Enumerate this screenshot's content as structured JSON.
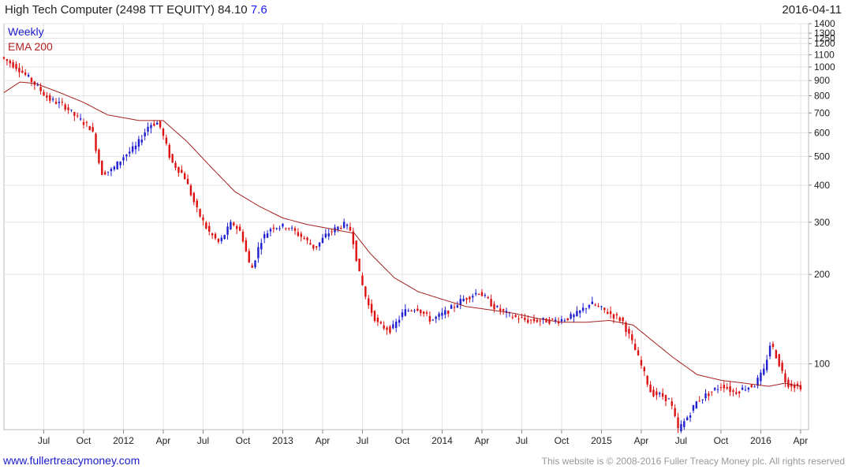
{
  "header": {
    "title": "High Tech Computer (2498 TT EQUITY) 84.10",
    "change": "7.6",
    "date": "2016-04-11"
  },
  "footer": {
    "left": "www.fullertreacymoney.com",
    "right": "This website is © 2008-2016 Fuller Treacy Money plc. All rights reserved"
  },
  "colors": {
    "up": "#1f1fd0",
    "down": "#dd1111",
    "ema": "#a52020",
    "grid": "#e4e4e4"
  },
  "chart_data": {
    "type": "candlestick",
    "scale": "log",
    "ylim": [
      60,
      1400
    ],
    "legend": [
      "Weekly",
      "EMA 200"
    ],
    "legend_position": "top-left",
    "grid": true,
    "y_ticks": [
      100,
      200,
      300,
      400,
      500,
      600,
      700,
      800,
      900,
      1000,
      1100,
      1200,
      1250,
      1300,
      1400
    ],
    "x_ticks": [
      {
        "label": "Jul",
        "t": 2011.5
      },
      {
        "label": "Oct",
        "t": 2011.75
      },
      {
        "label": "2012",
        "t": 2012.0
      },
      {
        "label": "Apr",
        "t": 2012.25
      },
      {
        "label": "Jul",
        "t": 2012.5
      },
      {
        "label": "Oct",
        "t": 2012.75
      },
      {
        "label": "2013",
        "t": 2013.0
      },
      {
        "label": "Apr",
        "t": 2013.25
      },
      {
        "label": "Jul",
        "t": 2013.5
      },
      {
        "label": "Oct",
        "t": 2013.75
      },
      {
        "label": "2014",
        "t": 2014.0
      },
      {
        "label": "Apr",
        "t": 2014.25
      },
      {
        "label": "Jul",
        "t": 2014.5
      },
      {
        "label": "Oct",
        "t": 2014.75
      },
      {
        "label": "2015",
        "t": 2015.0
      },
      {
        "label": "Apr",
        "t": 2015.25
      },
      {
        "label": "Jul",
        "t": 2015.5
      },
      {
        "label": "Oct",
        "t": 2015.75
      },
      {
        "label": "2016",
        "t": 2016.0
      },
      {
        "label": "Apr",
        "t": 2016.25
      }
    ],
    "price_path": [
      [
        2011.25,
        1080
      ],
      [
        2011.35,
        1000
      ],
      [
        2011.45,
        890
      ],
      [
        2011.55,
        780
      ],
      [
        2011.65,
        740
      ],
      [
        2011.72,
        680
      ],
      [
        2011.82,
        620
      ],
      [
        2011.88,
        440
      ],
      [
        2011.95,
        450
      ],
      [
        2012.02,
        500
      ],
      [
        2012.1,
        540
      ],
      [
        2012.18,
        640
      ],
      [
        2012.24,
        650
      ],
      [
        2012.32,
        480
      ],
      [
        2012.4,
        430
      ],
      [
        2012.48,
        330
      ],
      [
        2012.55,
        280
      ],
      [
        2012.62,
        255
      ],
      [
        2012.7,
        300
      ],
      [
        2012.76,
        275
      ],
      [
        2012.82,
        205
      ],
      [
        2012.88,
        260
      ],
      [
        2012.95,
        290
      ],
      [
        2013.05,
        290
      ],
      [
        2013.15,
        265
      ],
      [
        2013.22,
        245
      ],
      [
        2013.3,
        275
      ],
      [
        2013.4,
        295
      ],
      [
        2013.45,
        280
      ],
      [
        2013.5,
        200
      ],
      [
        2013.55,
        160
      ],
      [
        2013.62,
        135
      ],
      [
        2013.7,
        130
      ],
      [
        2013.78,
        150
      ],
      [
        2013.86,
        155
      ],
      [
        2013.95,
        140
      ],
      [
        2014.05,
        150
      ],
      [
        2014.15,
        165
      ],
      [
        2014.25,
        175
      ],
      [
        2014.35,
        155
      ],
      [
        2014.45,
        145
      ],
      [
        2014.55,
        140
      ],
      [
        2014.65,
        140
      ],
      [
        2014.75,
        140
      ],
      [
        2014.85,
        145
      ],
      [
        2014.95,
        160
      ],
      [
        2015.05,
        150
      ],
      [
        2015.15,
        140
      ],
      [
        2015.22,
        115
      ],
      [
        2015.28,
        95
      ],
      [
        2015.33,
        80
      ],
      [
        2015.4,
        78
      ],
      [
        2015.45,
        75
      ],
      [
        2015.5,
        60
      ],
      [
        2015.55,
        65
      ],
      [
        2015.62,
        75
      ],
      [
        2015.7,
        80
      ],
      [
        2015.78,
        85
      ],
      [
        2015.85,
        80
      ],
      [
        2015.92,
        83
      ],
      [
        2015.98,
        85
      ],
      [
        2016.04,
        95
      ],
      [
        2016.08,
        118
      ],
      [
        2016.12,
        105
      ],
      [
        2016.18,
        86
      ],
      [
        2016.25,
        84
      ]
    ],
    "ema_path": [
      [
        2011.25,
        820
      ],
      [
        2011.35,
        890
      ],
      [
        2011.45,
        880
      ],
      [
        2011.6,
        820
      ],
      [
        2011.75,
        760
      ],
      [
        2011.9,
        690
      ],
      [
        2012.1,
        660
      ],
      [
        2012.25,
        660
      ],
      [
        2012.4,
        560
      ],
      [
        2012.55,
        460
      ],
      [
        2012.7,
        380
      ],
      [
        2012.85,
        340
      ],
      [
        2013.0,
        310
      ],
      [
        2013.15,
        295
      ],
      [
        2013.3,
        285
      ],
      [
        2013.45,
        275
      ],
      [
        2013.55,
        235
      ],
      [
        2013.7,
        195
      ],
      [
        2013.85,
        175
      ],
      [
        2014.0,
        165
      ],
      [
        2014.15,
        156
      ],
      [
        2014.3,
        152
      ],
      [
        2014.45,
        148
      ],
      [
        2014.6,
        142
      ],
      [
        2014.75,
        138
      ],
      [
        2014.9,
        138
      ],
      [
        2015.05,
        140
      ],
      [
        2015.2,
        135
      ],
      [
        2015.3,
        122
      ],
      [
        2015.45,
        105
      ],
      [
        2015.6,
        92
      ],
      [
        2015.75,
        88
      ],
      [
        2015.9,
        86
      ],
      [
        2016.05,
        84
      ],
      [
        2016.15,
        86
      ],
      [
        2016.25,
        84
      ]
    ]
  }
}
